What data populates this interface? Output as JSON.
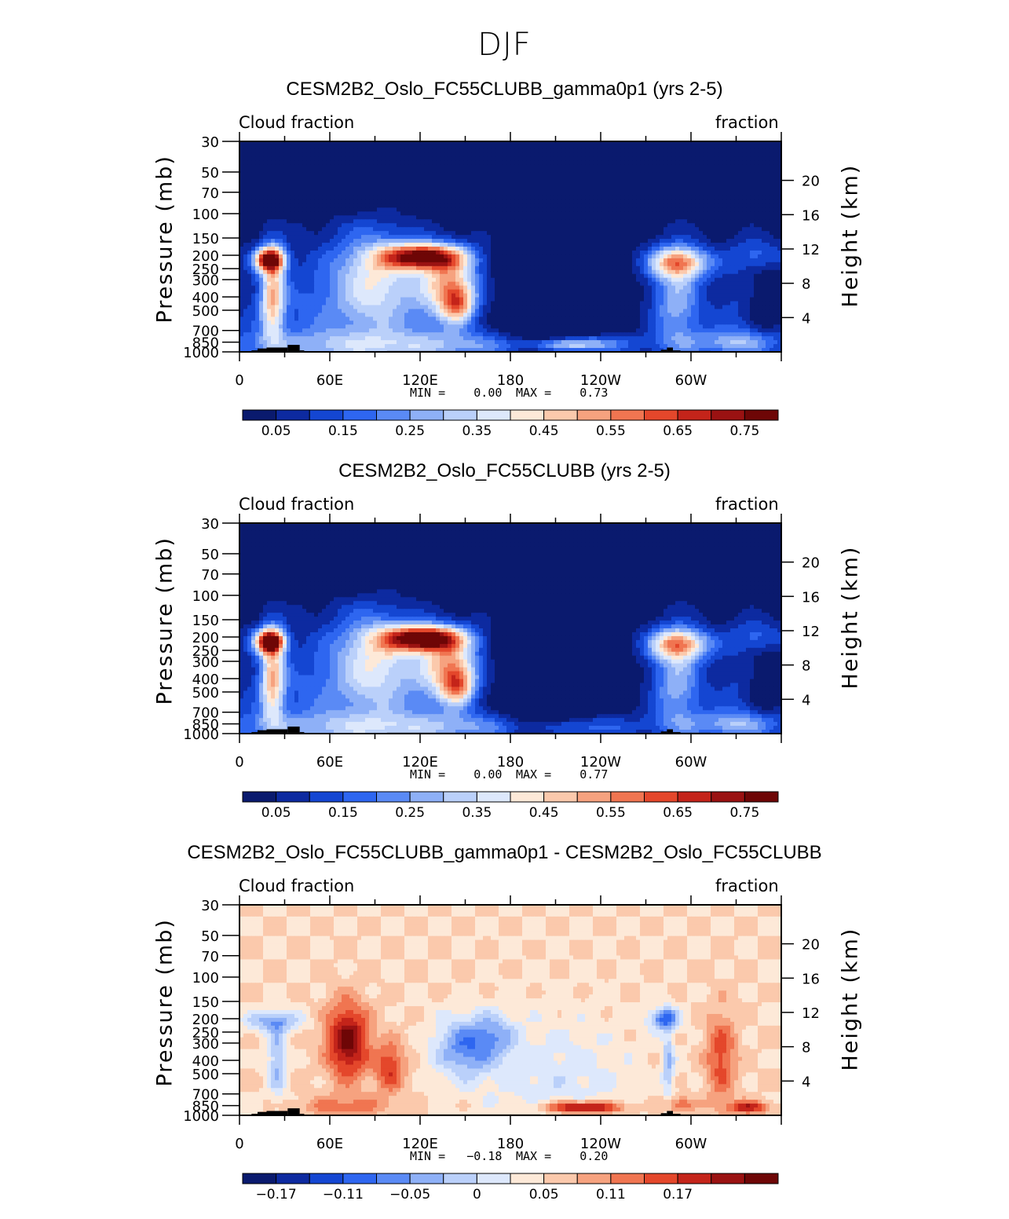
{
  "title": "DJF",
  "chart_data": [
    {
      "type": "heatmap",
      "title": "CESM2B2_Oslo_FC55CLUBB_gamma0p1 (yrs 2-5)",
      "variable_label": "Cloud fraction",
      "units_label": "fraction",
      "ylabel": "Pressure (mb)",
      "ylabel_right": "Height (km)",
      "x_ticks": [
        "0",
        "60E",
        "120E",
        "180",
        "120W",
        "60W"
      ],
      "y_ticks": [
        "30",
        "50",
        "70",
        "100",
        "150",
        "200",
        "250",
        "300",
        "400",
        "500",
        "700",
        "850",
        "1000"
      ],
      "y_ticks_right": [
        "20",
        "16",
        "12",
        "8",
        "4"
      ],
      "min_text": "MIN =    0.00",
      "max_text": "MAX =    0.73",
      "min": 0.0,
      "max": 0.73,
      "colorbar_labels": [
        "0.05",
        "0.15",
        "0.25",
        "0.35",
        "0.45",
        "0.55",
        "0.65",
        "0.75"
      ],
      "features": [
        {
          "lon": 20,
          "p": 220,
          "value": 0.62
        },
        {
          "lon": 120,
          "p": 210,
          "value": 0.7
        },
        {
          "lon": 135,
          "p": 300,
          "value": 0.5
        },
        {
          "lon": 140,
          "p": 450,
          "value": 0.45
        },
        {
          "lon": 290,
          "p": 230,
          "value": 0.45
        },
        {
          "lon": 300,
          "p": 220,
          "value": 0.48
        },
        {
          "lon": 220,
          "p": 880,
          "value": 0.38
        },
        {
          "lon": 100,
          "p": 600,
          "value": 0.22
        },
        {
          "lon": 200,
          "p": 450,
          "value": 0.02
        }
      ]
    },
    {
      "type": "heatmap",
      "title": "CESM2B2_Oslo_FC55CLUBB (yrs 2-5)",
      "variable_label": "Cloud fraction",
      "units_label": "fraction",
      "ylabel": "Pressure (mb)",
      "ylabel_right": "Height (km)",
      "x_ticks": [
        "0",
        "60E",
        "120E",
        "180",
        "120W",
        "60W"
      ],
      "y_ticks": [
        "30",
        "50",
        "70",
        "100",
        "150",
        "200",
        "250",
        "300",
        "400",
        "500",
        "700",
        "850",
        "1000"
      ],
      "y_ticks_right": [
        "20",
        "16",
        "12",
        "8",
        "4"
      ],
      "min_text": "MIN =    0.00",
      "max_text": "MAX =    0.77",
      "min": 0.0,
      "max": 0.77,
      "colorbar_labels": [
        "0.05",
        "0.15",
        "0.25",
        "0.35",
        "0.45",
        "0.55",
        "0.65",
        "0.75"
      ],
      "features": [
        {
          "lon": 22,
          "p": 220,
          "value": 0.72
        },
        {
          "lon": 120,
          "p": 200,
          "value": 0.75
        },
        {
          "lon": 135,
          "p": 300,
          "value": 0.55
        },
        {
          "lon": 140,
          "p": 450,
          "value": 0.45
        },
        {
          "lon": 295,
          "p": 220,
          "value": 0.5
        },
        {
          "lon": 100,
          "p": 600,
          "value": 0.2
        },
        {
          "lon": 200,
          "p": 450,
          "value": 0.02
        }
      ]
    },
    {
      "type": "heatmap",
      "title": "CESM2B2_Oslo_FC55CLUBB_gamma0p1 - CESM2B2_Oslo_FC55CLUBB",
      "variable_label": "Cloud fraction",
      "units_label": "fraction",
      "ylabel": "Pressure (mb)",
      "ylabel_right": "Height (km)",
      "x_ticks": [
        "0",
        "60E",
        "120E",
        "180",
        "120W",
        "60W"
      ],
      "y_ticks": [
        "30",
        "50",
        "70",
        "100",
        "150",
        "200",
        "250",
        "300",
        "400",
        "500",
        "700",
        "850",
        "1000"
      ],
      "y_ticks_right": [
        "20",
        "16",
        "12",
        "8",
        "4"
      ],
      "min_text": "MIN =   −0.18",
      "max_text": "MAX =    0.20",
      "min": -0.18,
      "max": 0.2,
      "colorbar_labels": [
        "−0.17",
        "−0.11",
        "−0.05",
        "0",
        "0.05",
        "0.11",
        "0.17"
      ],
      "features": [
        {
          "lon": 75,
          "p": 280,
          "value": 0.17
        },
        {
          "lon": 150,
          "p": 300,
          "value": -0.11
        },
        {
          "lon": 25,
          "p": 300,
          "value": -0.1
        },
        {
          "lon": 280,
          "p": 200,
          "value": -0.14
        },
        {
          "lon": 230,
          "p": 880,
          "value": 0.17
        },
        {
          "lon": 335,
          "p": 880,
          "value": 0.14
        },
        {
          "lon": 300,
          "p": 420,
          "value": 0.1
        }
      ]
    }
  ],
  "colors": {
    "frame": "#000000",
    "topography": "#000000",
    "colormap": [
      "#0a1a6e",
      "#0d2aa0",
      "#1446d2",
      "#2e66f0",
      "#5a8af5",
      "#8eb0f7",
      "#bad0fa",
      "#dde8fc",
      "#fde9d8",
      "#fbc9ac",
      "#f6a27f",
      "#f07551",
      "#e4472b",
      "#c4241a",
      "#9a1212",
      "#6e0606"
    ]
  }
}
